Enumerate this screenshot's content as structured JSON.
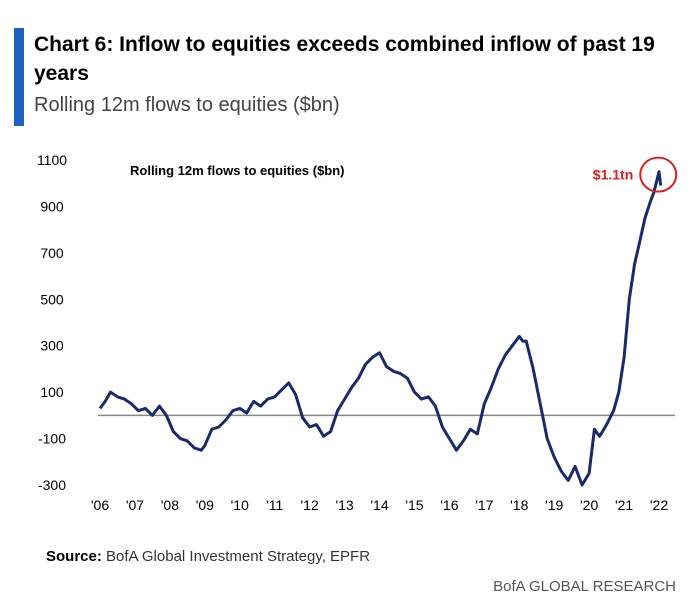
{
  "header": {
    "title": "Chart 6: Inflow to equities exceeds combined inflow of past 19 years",
    "subtitle": "Rolling 12m flows to equities ($bn)"
  },
  "source": {
    "label": "Source:",
    "text": "BofA Global Investment Strategy, EPFR"
  },
  "footer": {
    "brand": "BofA GLOBAL RESEARCH"
  },
  "colors": {
    "accent": "#1f5fbf",
    "line": "#1a2a6c",
    "annotation": "#d62020",
    "zero_line": "#888888"
  },
  "chart_data": {
    "type": "line",
    "title": "Rolling 12m flows to equities ($bn)",
    "ylim": [
      -300,
      1100
    ],
    "y_ticks": [
      "1100",
      "900",
      "700",
      "500",
      "300",
      "100",
      "-100",
      "-300"
    ],
    "y_tick_values": [
      1100,
      900,
      700,
      500,
      300,
      100,
      -100,
      -300
    ],
    "x_ticks": [
      "'06",
      "'07",
      "'08",
      "'09",
      "'10",
      "'11",
      "'12",
      "'13",
      "'14",
      "'15",
      "'16",
      "'17",
      "'18",
      "'19",
      "'20",
      "'21",
      "'22"
    ],
    "x_tick_values": [
      2006,
      2007,
      2008,
      2009,
      2010,
      2011,
      2012,
      2013,
      2014,
      2015,
      2016,
      2017,
      2018,
      2019,
      2020,
      2021,
      2022
    ],
    "reference_line": 0,
    "annotation": {
      "text": "$1.1tn",
      "x": 2021.95,
      "y": 1050
    },
    "series": [
      {
        "x": [
          2006.0,
          2006.15,
          2006.3,
          2006.5,
          2006.7,
          2006.9,
          2007.1,
          2007.3,
          2007.5,
          2007.7,
          2007.9,
          2008.1,
          2008.3,
          2008.5,
          2008.7,
          2008.9,
          2009.0,
          2009.2,
          2009.4,
          2009.6,
          2009.8,
          2010.0,
          2010.2,
          2010.4,
          2010.6,
          2010.8,
          2011.0,
          2011.2,
          2011.4,
          2011.6,
          2011.8,
          2012.0,
          2012.2,
          2012.4,
          2012.6,
          2012.8,
          2013.0,
          2013.2,
          2013.4,
          2013.6,
          2013.8,
          2014.0,
          2014.2,
          2014.4,
          2014.6,
          2014.8,
          2015.0,
          2015.2,
          2015.4,
          2015.6,
          2015.8,
          2016.0,
          2016.2,
          2016.4,
          2016.6,
          2016.8,
          2017.0,
          2017.2,
          2017.4,
          2017.6,
          2017.8,
          2018.0,
          2018.1,
          2018.2,
          2018.4,
          2018.6,
          2018.8,
          2019.0,
          2019.2,
          2019.4,
          2019.6,
          2019.8,
          2020.0,
          2020.15,
          2020.3,
          2020.5,
          2020.7,
          2020.85,
          2021.0,
          2021.15,
          2021.3,
          2021.45,
          2021.6,
          2021.75,
          2021.85,
          2021.95,
          2022.0,
          2022.05
        ],
        "y": [
          30,
          60,
          100,
          80,
          70,
          50,
          20,
          30,
          0,
          40,
          0,
          -70,
          -100,
          -110,
          -140,
          -150,
          -130,
          -60,
          -50,
          -20,
          20,
          30,
          10,
          60,
          40,
          70,
          80,
          110,
          140,
          90,
          -10,
          -50,
          -40,
          -90,
          -70,
          20,
          70,
          120,
          160,
          220,
          250,
          270,
          210,
          190,
          180,
          160,
          100,
          70,
          80,
          40,
          -50,
          -100,
          -150,
          -110,
          -60,
          -80,
          50,
          120,
          200,
          260,
          300,
          340,
          320,
          320,
          200,
          50,
          -100,
          -180,
          -240,
          -280,
          -220,
          -300,
          -250,
          -60,
          -90,
          -40,
          20,
          100,
          250,
          500,
          650,
          750,
          850,
          920,
          960,
          1020,
          1050,
          990
        ]
      }
    ]
  }
}
